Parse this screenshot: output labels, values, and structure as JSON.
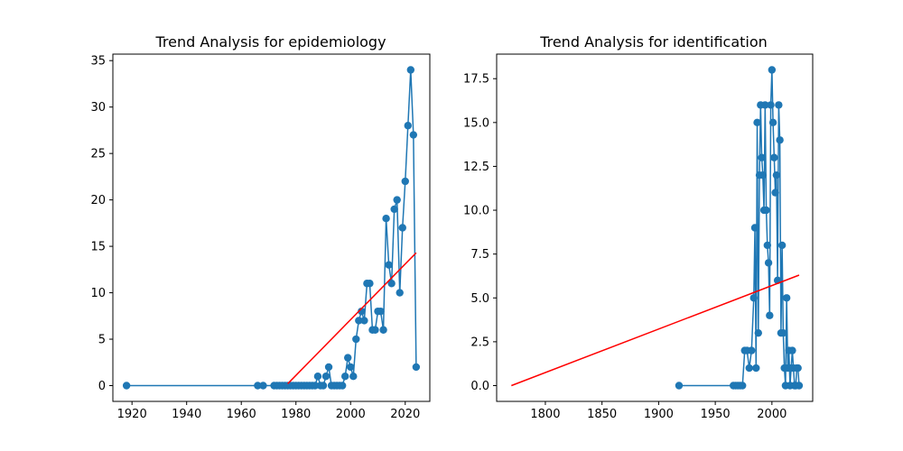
{
  "chart_data": [
    {
      "type": "line",
      "title": "Trend Analysis for epidemiology",
      "xlabel": "",
      "ylabel": "",
      "xlim": [
        1913,
        2029
      ],
      "ylim": [
        -1.7,
        35.7
      ],
      "xticks": [
        1920,
        1940,
        1960,
        1980,
        2000,
        2020
      ],
      "yticks": [
        0,
        5,
        10,
        15,
        20,
        25,
        30,
        35
      ],
      "grid": false,
      "series": [
        {
          "color": "#1f77b4",
          "marker": "circle",
          "x": [
            1918,
            1966,
            1968,
            1972,
            1973,
            1974,
            1975,
            1976,
            1977,
            1978,
            1979,
            1980,
            1981,
            1982,
            1983,
            1984,
            1985,
            1986,
            1987,
            1988,
            1989,
            1990,
            1991,
            1992,
            1993,
            1994,
            1995,
            1996,
            1997,
            1998,
            1999,
            2000,
            2001,
            2002,
            2003,
            2004,
            2005,
            2006,
            2007,
            2008,
            2009,
            2010,
            2011,
            2012,
            2013,
            2014,
            2015,
            2016,
            2017,
            2018,
            2019,
            2020,
            2021,
            2022,
            2023,
            2024
          ],
          "values": [
            0,
            0,
            0,
            0,
            0,
            0,
            0,
            0,
            0,
            0,
            0,
            0,
            0,
            0,
            0,
            0,
            0,
            0,
            0,
            1,
            0,
            0,
            1,
            2,
            0,
            0,
            0,
            0,
            0,
            1,
            3,
            2,
            1,
            5,
            7,
            8,
            7,
            11,
            11,
            6,
            6,
            8,
            8,
            6,
            18,
            13,
            11,
            19,
            20,
            10,
            17,
            22,
            28,
            34,
            27,
            2
          ]
        },
        {
          "color": "#ff0000",
          "marker": "none",
          "x": [
            1977,
            2024
          ],
          "values": [
            0.2,
            14.3
          ]
        }
      ]
    },
    {
      "type": "line",
      "title": "Trend Analysis for identification",
      "xlabel": "",
      "ylabel": "",
      "xlim": [
        1757,
        2036
      ],
      "ylim": [
        -0.9,
        18.9
      ],
      "xticks": [
        1800,
        1850,
        1900,
        1950,
        2000
      ],
      "xtick_labels": [
        "1800",
        "1850",
        "1900",
        "1950",
        "2000"
      ],
      "yticks": [
        0.0,
        2.5,
        5.0,
        7.5,
        10.0,
        12.5,
        15.0,
        17.5
      ],
      "ytick_labels": [
        "0.0",
        "2.5",
        "5.0",
        "7.5",
        "10.0",
        "12.5",
        "15.0",
        "17.5"
      ],
      "grid": false,
      "series": [
        {
          "color": "#1f77b4",
          "marker": "circle",
          "x": [
            1918,
            1966,
            1968,
            1970,
            1972,
            1974,
            1976,
            1978,
            1980,
            1982,
            1984,
            1985,
            1986,
            1987,
            1988,
            1989,
            1990,
            1991,
            1992,
            1993,
            1994,
            1995,
            1996,
            1997,
            1998,
            1999,
            2000,
            2001,
            2002,
            2003,
            2004,
            2005,
            2006,
            2007,
            2008,
            2009,
            2010,
            2011,
            2012,
            2013,
            2014,
            2015,
            2016,
            2017,
            2018,
            2019,
            2020,
            2021,
            2022,
            2023,
            2024
          ],
          "values": [
            0,
            0,
            0,
            0,
            0,
            0,
            2,
            2,
            1,
            2,
            5,
            9,
            1,
            15,
            3,
            12,
            16,
            13,
            12,
            10,
            16,
            10,
            8,
            7,
            4,
            16,
            18,
            15,
            13,
            11,
            12,
            6,
            16,
            14,
            3,
            8,
            3,
            1,
            0,
            5,
            1,
            2,
            0,
            1,
            2,
            1,
            0,
            0,
            1,
            1,
            0
          ]
        },
        {
          "color": "#ff0000",
          "marker": "none",
          "x": [
            1770,
            2024
          ],
          "values": [
            0.0,
            6.3
          ]
        }
      ]
    }
  ]
}
